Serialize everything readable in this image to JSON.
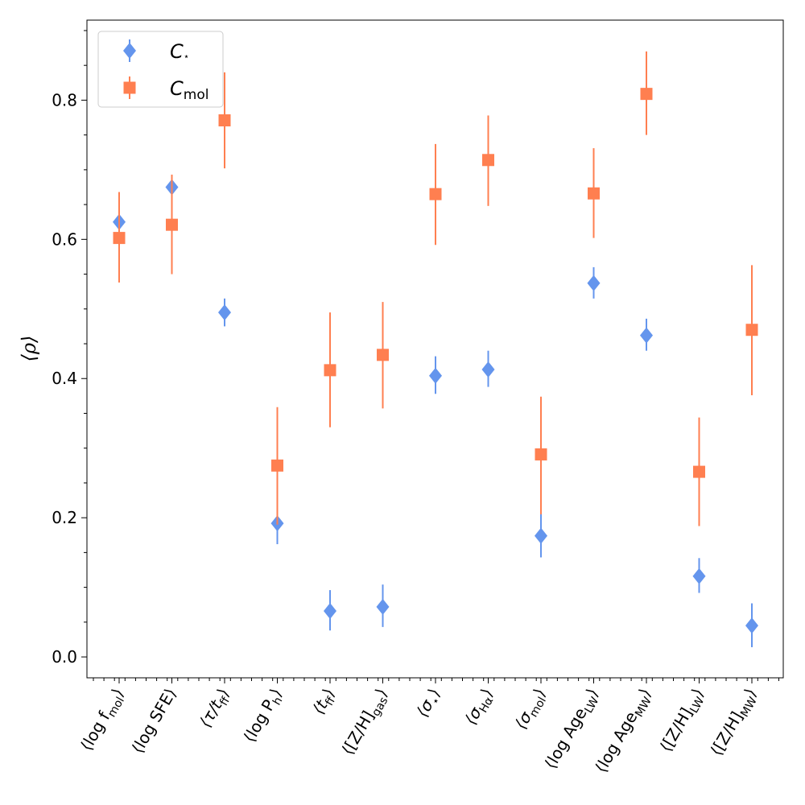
{
  "chart_data": {
    "type": "scatter",
    "title": "",
    "xlabel": "",
    "ylabel": "⟨ρ⟩",
    "ylim": [
      -0.03,
      0.915
    ],
    "yticks": [
      0.0,
      0.2,
      0.4,
      0.6,
      0.8
    ],
    "ytick_labels": [
      "0.0",
      "0.2",
      "0.4",
      "0.6",
      "0.8"
    ],
    "grid": false,
    "legend_position": "top-left",
    "categories": [
      "⟨log f_mol⟩",
      "⟨log SFE⟩",
      "⟨τ/t_ff⟩",
      "⟨log P_h⟩",
      "⟨t_ff⟩",
      "⟨[Z/H]_gas⟩",
      "⟨σ_⋆⟩",
      "⟨σ_Hα⟩",
      "⟨σ_mol⟩",
      "⟨log Age_LW⟩",
      "⟨log Age_MW⟩",
      "⟨[Z/H]_LW⟩",
      "⟨[Z/H]_MW⟩"
    ],
    "series": [
      {
        "name": "C⋆",
        "marker": "diamond",
        "color": "#6495ED",
        "values": [
          0.625,
          0.675,
          0.495,
          0.192,
          0.066,
          0.072,
          0.404,
          0.413,
          0.174,
          0.537,
          0.462,
          0.116,
          0.045
        ],
        "err_low": [
          0.6,
          0.655,
          0.475,
          0.162,
          0.038,
          0.043,
          0.378,
          0.388,
          0.143,
          0.515,
          0.44,
          0.092,
          0.014
        ],
        "err_high": [
          0.64,
          0.69,
          0.515,
          0.2,
          0.096,
          0.104,
          0.432,
          0.44,
          0.208,
          0.56,
          0.486,
          0.142,
          0.077
        ]
      },
      {
        "name": "Cmol",
        "marker": "square",
        "color": "#FF7F50",
        "values": [
          0.602,
          0.621,
          0.771,
          0.275,
          0.412,
          0.434,
          0.665,
          0.714,
          0.291,
          0.666,
          0.809,
          0.266,
          0.47
        ],
        "err_low": [
          0.538,
          0.55,
          0.702,
          0.19,
          0.33,
          0.357,
          0.592,
          0.648,
          0.205,
          0.602,
          0.75,
          0.188,
          0.376
        ],
        "err_high": [
          0.668,
          0.693,
          0.84,
          0.359,
          0.495,
          0.51,
          0.737,
          0.778,
          0.374,
          0.731,
          0.87,
          0.344,
          0.563
        ]
      }
    ],
    "legend": [
      {
        "label_main": "C",
        "label_sub": "⋆",
        "marker": "diamond",
        "color": "#6495ED"
      },
      {
        "label_main": "C",
        "label_sub": "mol",
        "marker": "square",
        "color": "#FF7F50"
      }
    ]
  }
}
